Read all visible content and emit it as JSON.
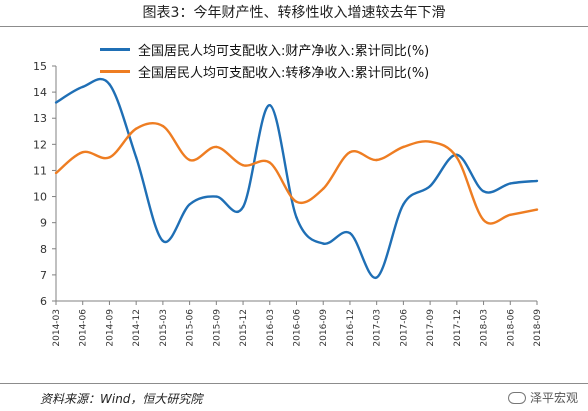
{
  "title": "图表3：今年财产性、转移性收入增速较去年下滑",
  "source": "资料来源：Wind，恒大研究院",
  "brand": "泽平宏观",
  "colors": {
    "series1": "#1f6fb5",
    "series2": "#ee7d22",
    "axis": "#808080"
  },
  "chart_data": {
    "type": "line",
    "x": [
      "2014-03",
      "2014-06",
      "2014-09",
      "2014-12",
      "2015-03",
      "2015-06",
      "2015-09",
      "2015-12",
      "2016-03",
      "2016-06",
      "2016-09",
      "2016-12",
      "2017-03",
      "2017-06",
      "2017-09",
      "2017-12",
      "2018-03",
      "2018-06",
      "2018-09"
    ],
    "ylim": [
      6,
      15
    ],
    "yticks": [
      6,
      7,
      8,
      9,
      10,
      11,
      12,
      13,
      14,
      15
    ],
    "grid": false,
    "legend": "top-left",
    "series": [
      {
        "name": "全国居民人均可支配收入:财产净收入:累计同比(%)",
        "values": [
          13.6,
          14.2,
          14.3,
          11.5,
          8.3,
          9.7,
          10.0,
          9.6,
          13.5,
          9.2,
          8.2,
          8.6,
          6.9,
          9.7,
          10.4,
          11.6,
          10.2,
          10.5,
          10.6
        ]
      },
      {
        "name": "全国居民人均可支配收入:转移净收入:累计同比(%)",
        "values": [
          10.9,
          11.7,
          11.5,
          12.6,
          12.7,
          11.4,
          11.9,
          11.2,
          11.3,
          9.8,
          10.3,
          11.7,
          11.4,
          11.9,
          12.1,
          11.5,
          9.1,
          9.3,
          9.5
        ]
      }
    ]
  }
}
